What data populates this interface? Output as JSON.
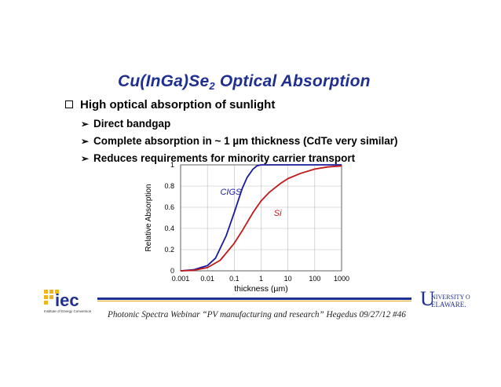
{
  "slide": {
    "title_main": "Cu(InGa)Se",
    "title_sub": "2",
    "title_rest": " Optical Absorption",
    "bullet_main": "High optical absorption of sunlight",
    "sub_bullets": [
      "Direct bandgap",
      "Complete absorption in ~ 1 µm thickness (CdTe very similar)",
      "Reduces requirements for minority carrier transport"
    ],
    "footer": "Photonic Spectra Webinar “PV manufacturing and research” Hegedus 09/27/12  #46",
    "logos": {
      "iec_text": "iec",
      "iec_small": "Institute of Energy Conversion",
      "ud_text": "UNIVERSITY OF DELAWARE"
    }
  },
  "chart_data": {
    "type": "line",
    "xlabel": "thickness (µm)",
    "ylabel": "Relative Absorption",
    "x_scale": "log",
    "xlim": [
      0.001,
      1000
    ],
    "ylim": [
      0,
      1
    ],
    "x_ticks": [
      "0.001",
      "0.01",
      "0.1",
      "1",
      "10",
      "100",
      "1000"
    ],
    "y_ticks": [
      "0",
      "0.2",
      "0.4",
      "0.6",
      "0.8",
      "1"
    ],
    "grid": true,
    "series": [
      {
        "name": "CIGS",
        "color": "#1a1aa0",
        "x": [
          0.001,
          0.003,
          0.01,
          0.02,
          0.05,
          0.1,
          0.2,
          0.3,
          0.5,
          0.7,
          1,
          2,
          10,
          1000
        ],
        "y": [
          0.0,
          0.01,
          0.05,
          0.12,
          0.33,
          0.55,
          0.78,
          0.88,
          0.96,
          0.99,
          1.0,
          1.0,
          1.0,
          1.0
        ]
      },
      {
        "name": "Si",
        "color": "#c01818",
        "x": [
          0.001,
          0.003,
          0.01,
          0.03,
          0.1,
          0.2,
          0.5,
          1,
          2,
          5,
          10,
          30,
          100,
          300,
          1000
        ],
        "y": [
          0.0,
          0.005,
          0.03,
          0.1,
          0.26,
          0.38,
          0.55,
          0.66,
          0.74,
          0.82,
          0.87,
          0.92,
          0.96,
          0.98,
          0.99
        ]
      }
    ]
  }
}
